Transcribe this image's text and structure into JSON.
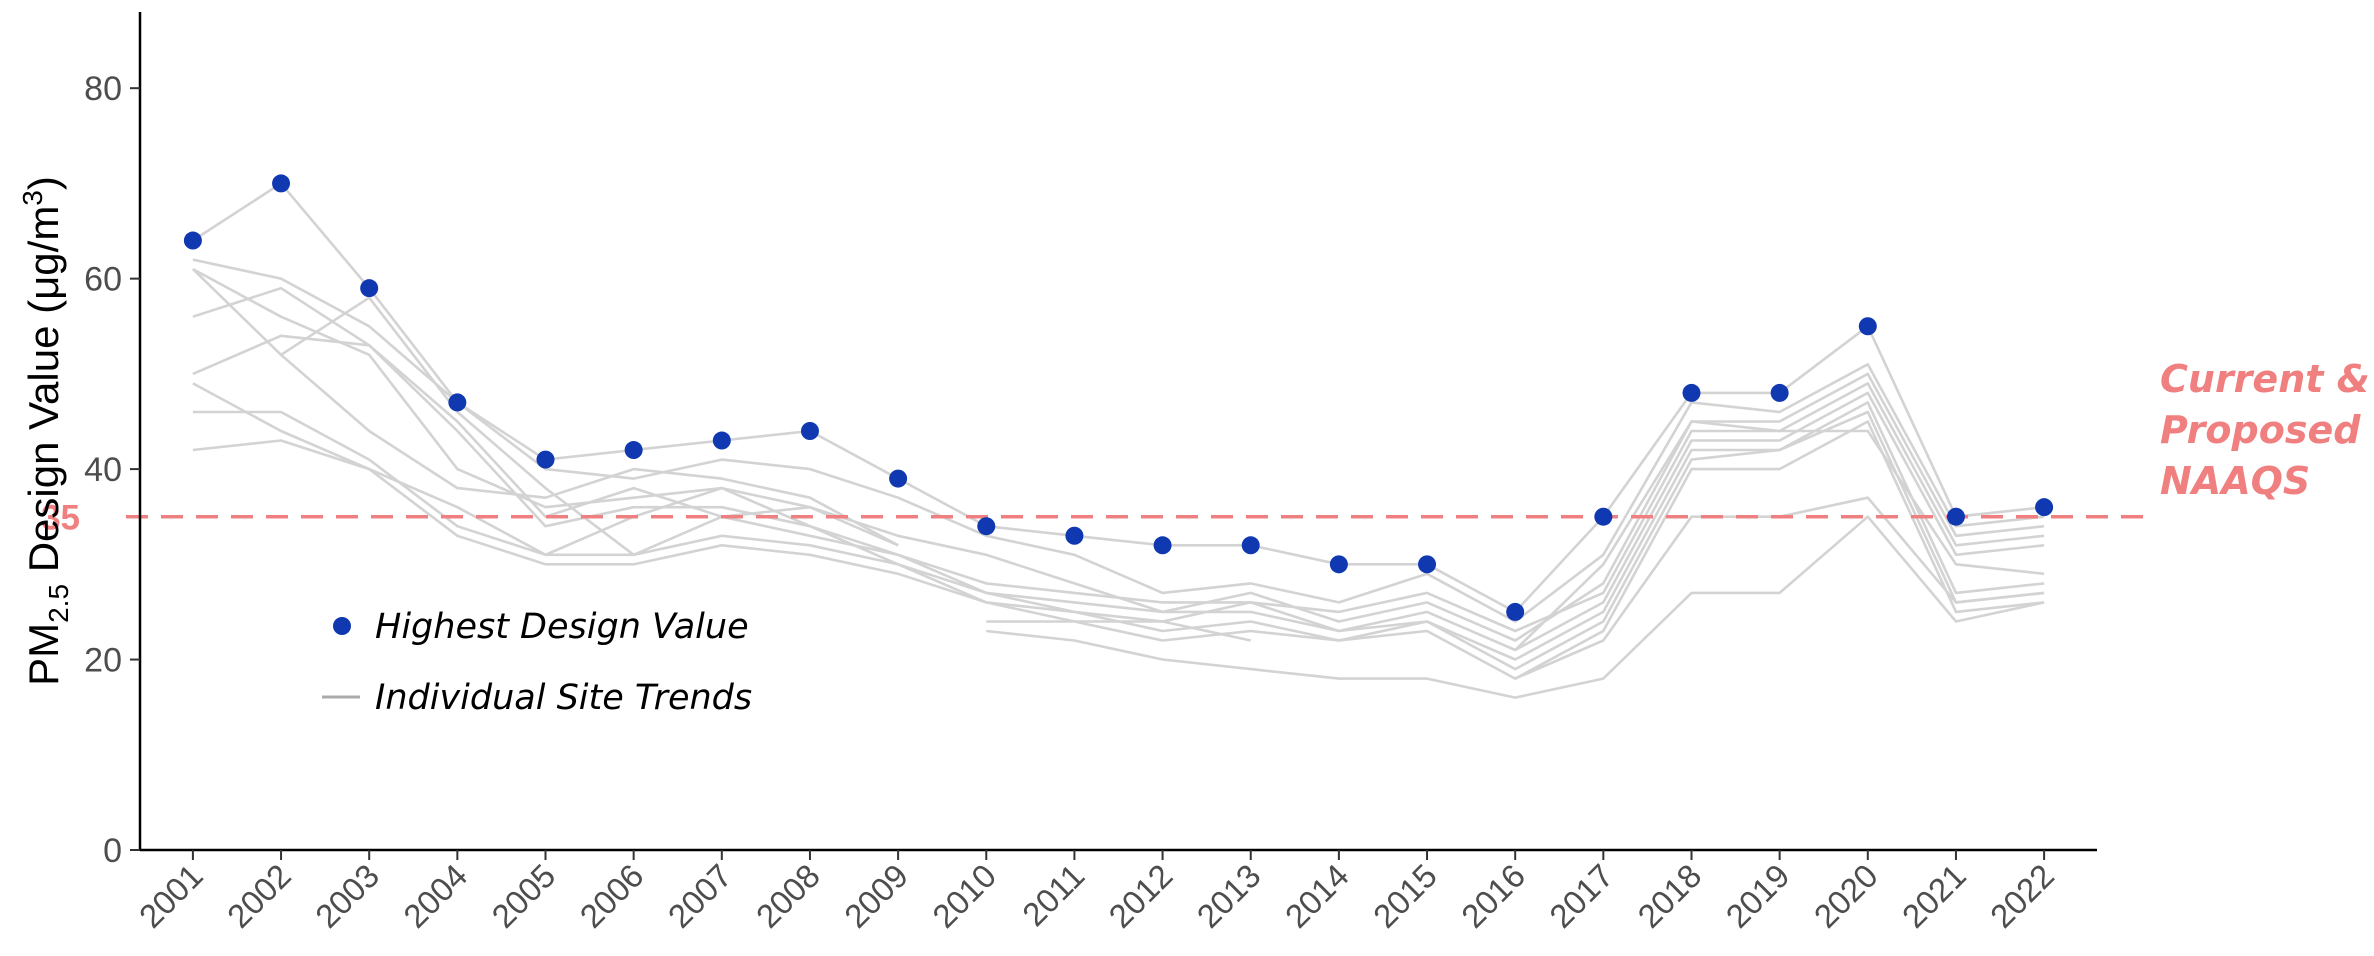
{
  "chart_data": {
    "type": "line",
    "ylabel": {
      "main": "PM",
      "sub": "2.5",
      "rest": " Design Value (",
      "unit_main": "μg/m",
      "unit_sup": "3",
      "close": ")"
    },
    "xlabel": "",
    "ylim": [
      0,
      88
    ],
    "yticks": [
      0,
      20,
      40,
      60,
      80
    ],
    "xlim": [
      2000.4,
      2022.6
    ],
    "x": [
      2001,
      2002,
      2003,
      2004,
      2005,
      2006,
      2007,
      2008,
      2009,
      2010,
      2011,
      2012,
      2013,
      2014,
      2015,
      2016,
      2017,
      2018,
      2019,
      2020,
      2021,
      2022
    ],
    "x_labels": [
      "2001",
      "2002",
      "2003",
      "2004",
      "2005",
      "2006",
      "2007",
      "2008",
      "2009",
      "2010",
      "2011",
      "2012",
      "2013",
      "2014",
      "2015",
      "2016",
      "2017",
      "2018",
      "2019",
      "2020",
      "2021",
      "2022"
    ],
    "highest": {
      "name": "Highest Design Value",
      "color": "#1038b0",
      "values": [
        64,
        70,
        59,
        47,
        41,
        42,
        43,
        44,
        39,
        34,
        33,
        32,
        32,
        30,
        30,
        25,
        35,
        48,
        48,
        55,
        35,
        36
      ]
    },
    "sites": {
      "name": "Individual Site Trends",
      "color": "#d3d3d3",
      "lines": [
        {
          "x0": 2001,
          "values": [
            64,
            70,
            59,
            47,
            41,
            42,
            43,
            44,
            39,
            34,
            33,
            32,
            32,
            30,
            30,
            25,
            35,
            48,
            48,
            55,
            35,
            36
          ]
        },
        {
          "x0": 2001,
          "values": [
            62,
            60,
            55,
            47,
            40,
            39,
            41,
            40,
            37,
            33,
            31,
            27,
            28,
            26,
            29,
            24,
            31,
            47,
            46,
            51,
            34,
            35
          ]
        },
        {
          "x0": 2001,
          "values": [
            61,
            56,
            52,
            40,
            36,
            37,
            38,
            36,
            33,
            31,
            28,
            25,
            27,
            24,
            26,
            22,
            28,
            45,
            45,
            50,
            33,
            34
          ]
        },
        {
          "x0": 2001,
          "values": [
            56,
            59,
            53,
            44,
            34,
            36,
            36,
            34,
            31,
            28,
            27,
            26,
            26,
            25,
            27,
            23,
            27,
            44,
            44,
            49,
            32,
            33
          ]
        },
        {
          "x0": 2001,
          "values": [
            50,
            54,
            53,
            45,
            35,
            38,
            35,
            33,
            31,
            27,
            26,
            25,
            25,
            23,
            25,
            21,
            26,
            43,
            43,
            48,
            31,
            32
          ]
        },
        {
          "x0": 2001,
          "values": [
            49,
            44,
            40,
            36,
            31,
            35,
            38,
            34,
            30,
            27,
            25,
            24,
            26,
            23,
            24,
            20,
            25,
            42,
            42,
            47,
            27,
            28
          ]
        },
        {
          "x0": 2001,
          "values": [
            46,
            46,
            41,
            34,
            31,
            31,
            33,
            32,
            30,
            26,
            25,
            23,
            24,
            22,
            24,
            19,
            24,
            41,
            42,
            46,
            26,
            27
          ]
        },
        {
          "x0": 2001,
          "values": [
            42,
            43,
            40,
            33,
            30,
            30,
            32,
            31,
            29,
            26,
            24,
            22,
            23,
            22,
            23,
            18,
            23,
            40,
            40,
            45,
            25,
            26
          ]
        },
        {
          "x0": 2001,
          "values": [
            61,
            52,
            44,
            38,
            37,
            40,
            39,
            37,
            32
          ]
        },
        {
          "x0": 2002,
          "values": [
            52,
            58,
            46,
            38,
            31,
            35,
            36,
            32
          ]
        },
        {
          "x0": 2010,
          "values": [
            23,
            22,
            20,
            19,
            18,
            18,
            16,
            18,
            27,
            27,
            35,
            24,
            26
          ]
        },
        {
          "x0": 2010,
          "values": [
            24,
            24,
            24,
            22
          ]
        },
        {
          "x0": 2016,
          "values": [
            18,
            22,
            35,
            35,
            37,
            26,
            27
          ]
        },
        {
          "x0": 2016,
          "values": [
            21,
            30,
            45,
            44,
            44,
            30,
            29
          ]
        }
      ]
    },
    "reference_line": {
      "value": 35,
      "value_label": "35",
      "color": "#f08080",
      "label_lines": [
        "Current &",
        "Proposed",
        "NAAQS"
      ]
    },
    "legend": {
      "position": "bottom-left",
      "items": [
        "Highest Design Value",
        "Individual Site Trends"
      ]
    },
    "grid": false
  }
}
